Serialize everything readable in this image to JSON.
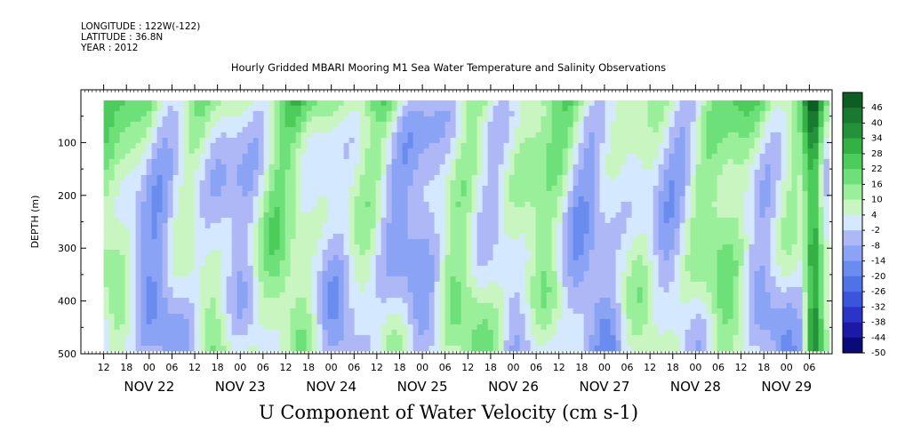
{
  "header": {
    "longitude": "LONGITUDE : 122W(-122)",
    "latitude": "LATITUDE : 36.8N",
    "year": "YEAR : 2012"
  },
  "chart_data": {
    "type": "heatmap",
    "title": "Hourly Gridded MBARI Mooring M1 Sea Water Temperature and Salinity Observations",
    "xlabel": "U Component of Water Velocity (cm s-1)",
    "ylabel": "DEPTH (m)",
    "x_range": [
      "2012-11-21 06:00",
      "2012-11-29 12:00"
    ],
    "data_x_range": [
      "2012-11-21 12:00",
      "2012-11-29 10:00"
    ],
    "ylim": [
      500,
      0
    ],
    "data_depth_range": [
      20,
      485
    ],
    "y_ticks": [
      100,
      200,
      300,
      400,
      500
    ],
    "hour_ticks": [
      "12",
      "18",
      "00",
      "06",
      "12",
      "18",
      "00",
      "06",
      "12",
      "18",
      "00",
      "06",
      "12",
      "18",
      "00",
      "06",
      "12",
      "18",
      "00",
      "06",
      "12",
      "18",
      "00",
      "06",
      "12",
      "18",
      "00",
      "06",
      "12",
      "18",
      "00",
      "06"
    ],
    "day_labels": [
      "NOV 22",
      "NOV 23",
      "NOV 24",
      "NOV 25",
      "NOV 26",
      "NOV 27",
      "NOV 28",
      "NOV 29"
    ],
    "colorbar": {
      "levels": [
        -50,
        -44,
        -38,
        -32,
        -26,
        -20,
        -14,
        -8,
        -2,
        4,
        10,
        16,
        22,
        28,
        34,
        40,
        46
      ],
      "labels": [
        "46",
        "40",
        "34",
        "28",
        "22",
        "16",
        "10",
        "4",
        "-2",
        "-8",
        "-14",
        "-20",
        "-26",
        "-32",
        "-38",
        "-44",
        "-50"
      ],
      "colors": [
        "#0a0a78",
        "#1a1aa6",
        "#2a34c8",
        "#3a55dc",
        "#4f73e6",
        "#6a8cef",
        "#8aa3f5",
        "#aeb8f6",
        "#d4e9ff",
        "#c8f5c0",
        "#9aef9a",
        "#6ee07a",
        "#4ccc5a",
        "#34b044",
        "#24923a",
        "#187a2e",
        "#0c5e22"
      ]
    },
    "notes": "Green denotes positive (eastward) U velocity, blue denotes negative (westward); strong positive band near surface and at end (Nov 29 00-06)."
  }
}
